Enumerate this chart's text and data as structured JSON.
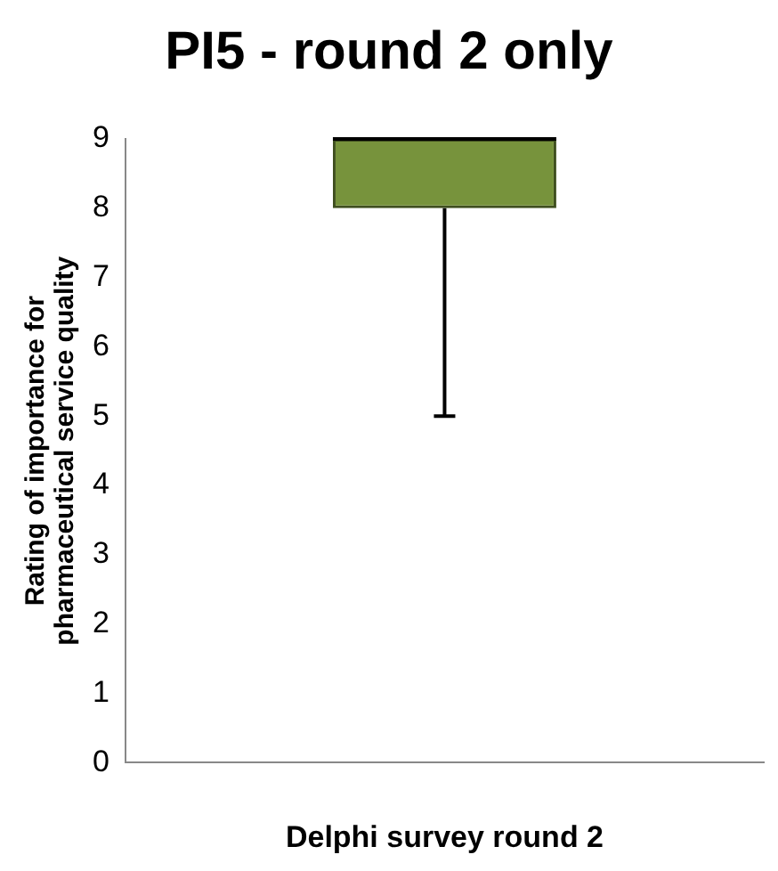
{
  "chart_data": {
    "type": "box",
    "title": "PI5 - round 2 only",
    "xlabel": "Delphi survey round 2",
    "ylabel": "Rating of importance for pharmaceutical service quality",
    "categories": [
      null
    ],
    "boxes": [
      {
        "low": 5,
        "q1": 8,
        "median": 9,
        "q3": 9,
        "high": 9
      }
    ],
    "color": "#77933c",
    "ylim": [
      0,
      9
    ],
    "yticks": [
      0,
      1,
      2,
      3,
      4,
      5,
      6,
      7,
      8,
      9
    ],
    "grid": false,
    "legend": false
  }
}
